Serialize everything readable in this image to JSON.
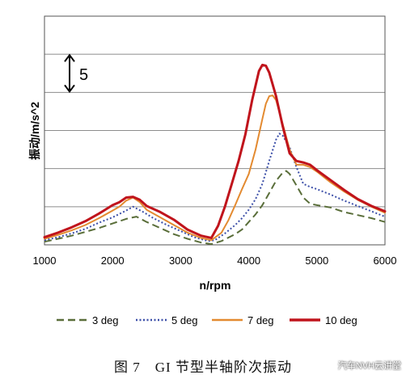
{
  "chart_data": {
    "type": "line",
    "title": "",
    "xlabel": "n/rpm",
    "ylabel": "振动/m/s^2",
    "xlim": [
      1000,
      6000
    ],
    "xticks": [
      1000,
      2000,
      3000,
      4000,
      5000,
      6000
    ],
    "ylim": [
      0,
      30
    ],
    "ygrid_step": 5,
    "grid": "horizontal",
    "legend_position": "bottom",
    "scale_marker": {
      "label": "5",
      "value": 5
    },
    "series": [
      {
        "name": "3 deg",
        "color": "#5a6e3a",
        "dash": "dashed",
        "x": [
          1000,
          1200,
          1400,
          1600,
          1800,
          2000,
          2200,
          2350,
          2500,
          2700,
          2900,
          3100,
          3300,
          3450,
          3600,
          3800,
          3900,
          4000,
          4100,
          4200,
          4300,
          4400,
          4500,
          4550,
          4600,
          4700,
          4800,
          4900,
          5000,
          5200,
          5400,
          5600,
          5800,
          6000
        ],
        "y": [
          0.4,
          0.8,
          1.2,
          1.7,
          2.2,
          2.8,
          3.4,
          3.7,
          3.0,
          2.2,
          1.4,
          0.8,
          0.3,
          0.1,
          0.5,
          1.4,
          2.0,
          3.0,
          4.0,
          5.2,
          6.8,
          8.4,
          9.5,
          9.7,
          9.3,
          7.8,
          6.2,
          5.4,
          5.2,
          4.9,
          4.3,
          3.9,
          3.5,
          3.0
        ]
      },
      {
        "name": "5 deg",
        "color": "#3c4fa8",
        "dash": "dotted",
        "x": [
          1000,
          1200,
          1400,
          1600,
          1800,
          2000,
          2200,
          2300,
          2450,
          2600,
          2800,
          3000,
          3200,
          3400,
          3500,
          3650,
          3800,
          3900,
          4000,
          4100,
          4200,
          4300,
          4400,
          4450,
          4500,
          4600,
          4700,
          4800,
          4900,
          5000,
          5200,
          5400,
          5600,
          5800,
          6000
        ],
        "y": [
          0.6,
          1.0,
          1.5,
          2.1,
          2.9,
          3.6,
          4.5,
          5.0,
          4.3,
          3.5,
          2.6,
          1.8,
          1.0,
          0.5,
          0.6,
          1.5,
          2.6,
          3.5,
          4.6,
          6.0,
          8.0,
          11.0,
          13.8,
          14.6,
          14.3,
          12.8,
          10.2,
          8.0,
          7.6,
          7.3,
          6.6,
          5.8,
          5.1,
          4.4,
          3.7
        ]
      },
      {
        "name": "7 deg",
        "color": "#e38a30",
        "dash": "solid",
        "x": [
          1000,
          1200,
          1400,
          1600,
          1800,
          2000,
          2100,
          2200,
          2300,
          2400,
          2500,
          2700,
          2900,
          3100,
          3300,
          3450,
          3600,
          3700,
          3800,
          3900,
          4000,
          4100,
          4200,
          4250,
          4300,
          4350,
          4400,
          4500,
          4600,
          4700,
          4800,
          4900,
          5000,
          5200,
          5400,
          5600,
          5800,
          6000
        ],
        "y": [
          0.8,
          1.3,
          1.9,
          2.6,
          3.5,
          4.5,
          5.0,
          5.8,
          6.2,
          5.6,
          4.6,
          3.6,
          2.6,
          1.6,
          0.9,
          0.6,
          1.6,
          3.2,
          5.2,
          7.3,
          9.3,
          12.5,
          16.5,
          18.5,
          19.5,
          19.6,
          19.0,
          15.8,
          12.5,
          10.5,
          10.5,
          10.2,
          9.6,
          8.2,
          7.0,
          5.9,
          5.0,
          4.2
        ]
      },
      {
        "name": "10 deg",
        "color": "#c0141c",
        "dash": "solid",
        "x": [
          1000,
          1200,
          1400,
          1600,
          1800,
          2000,
          2100,
          2200,
          2300,
          2400,
          2500,
          2700,
          2900,
          3100,
          3300,
          3450,
          3550,
          3650,
          3750,
          3850,
          3950,
          4050,
          4150,
          4200,
          4250,
          4300,
          4400,
          4500,
          4600,
          4700,
          4800,
          4900,
          5000,
          5200,
          5400,
          5600,
          5800,
          6000
        ],
        "y": [
          1.0,
          1.6,
          2.3,
          3.1,
          4.1,
          5.2,
          5.6,
          6.2,
          6.3,
          5.9,
          5.1,
          4.3,
          3.3,
          2.0,
          1.2,
          0.9,
          2.5,
          5.0,
          8.0,
          11.0,
          14.5,
          19.0,
          22.8,
          23.6,
          23.5,
          22.6,
          19.5,
          15.5,
          12.0,
          11.0,
          10.8,
          10.5,
          9.8,
          8.5,
          7.2,
          6.0,
          5.1,
          4.4
        ]
      }
    ]
  },
  "caption": "图 7　GI 节型半轴阶次振动",
  "watermark": "汽车NVH云讲堂"
}
